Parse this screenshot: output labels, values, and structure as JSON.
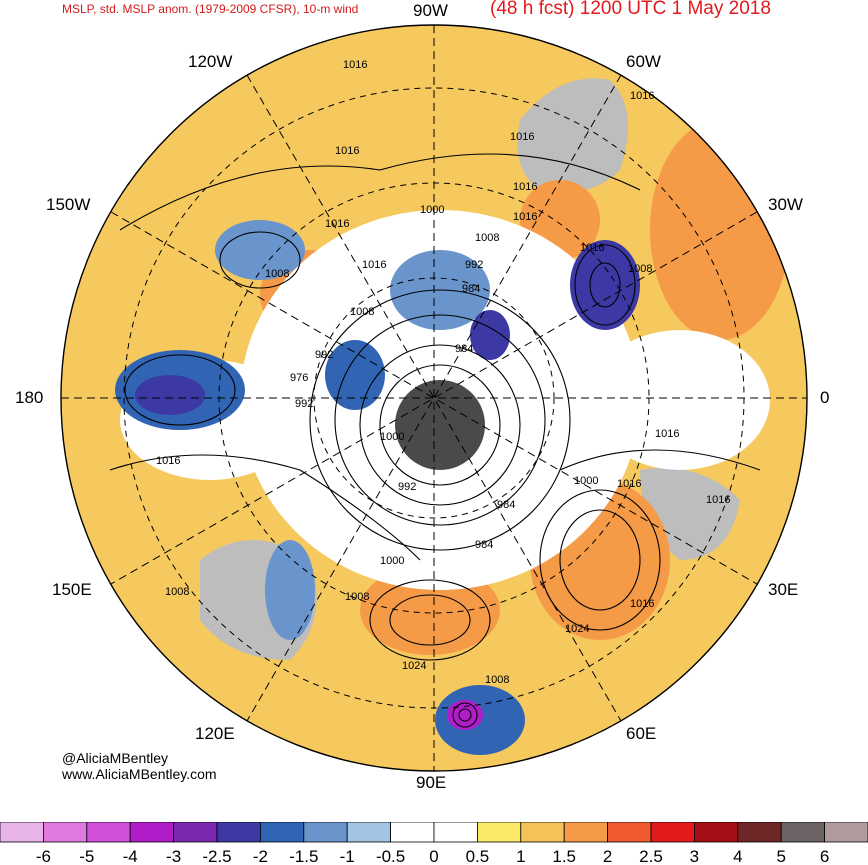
{
  "header": {
    "title_left": "MSLP, std. MSLP anom. (1979-2009 CFSR), 10-m wind",
    "title_right": "(48 h fcst) 1200 UTC 1 May 2018"
  },
  "longitude_labels": {
    "lon_90w": "90W",
    "lon_60w": "60W",
    "lon_120w": "120W",
    "lon_30w": "30W",
    "lon_150w": "150W",
    "lon_0": "0",
    "lon_180": "180",
    "lon_150e": "150E",
    "lon_30e": "30E",
    "lon_120e": "120E",
    "lon_60e": "60E",
    "lon_90e": "90E"
  },
  "credit": {
    "handle": "@AliciaMBentley",
    "website": "www.AliciaMBentley.com"
  },
  "isobar_labels": [
    "1016",
    "1016",
    "1016",
    "1016",
    "1016",
    "1016",
    "1016",
    "1016",
    "1016",
    "1016",
    "1016",
    "1016",
    "1016",
    "1016",
    "1008",
    "1008",
    "1008",
    "1008",
    "1008",
    "1008",
    "1008",
    "1000",
    "1000",
    "1000",
    "1000",
    "992",
    "992",
    "992",
    "992",
    "984",
    "984",
    "984",
    "984",
    "976",
    "1024",
    "1024"
  ],
  "colorbar": {
    "colors": [
      "#e8b4e8",
      "#e07ae0",
      "#d04ed8",
      "#b01cc8",
      "#7a28b0",
      "#3c38a4",
      "#3264b4",
      "#6a94cc",
      "#a4c4e4",
      "#ffffff",
      "#ffffff",
      "#fce867",
      "#f5c25a",
      "#f59a46",
      "#f05a2e",
      "#e31a1c",
      "#a50f15",
      "#6e2626",
      "#6c6464",
      "#b09c9c"
    ],
    "tick_labels": [
      "-6",
      "-5",
      "-4",
      "-3",
      "-2.5",
      "-2",
      "-1.5",
      "-1",
      "-0.5",
      "0",
      "0.5",
      "1",
      "1.5",
      "2",
      "2.5",
      "3",
      "4",
      "5",
      "6"
    ]
  }
}
